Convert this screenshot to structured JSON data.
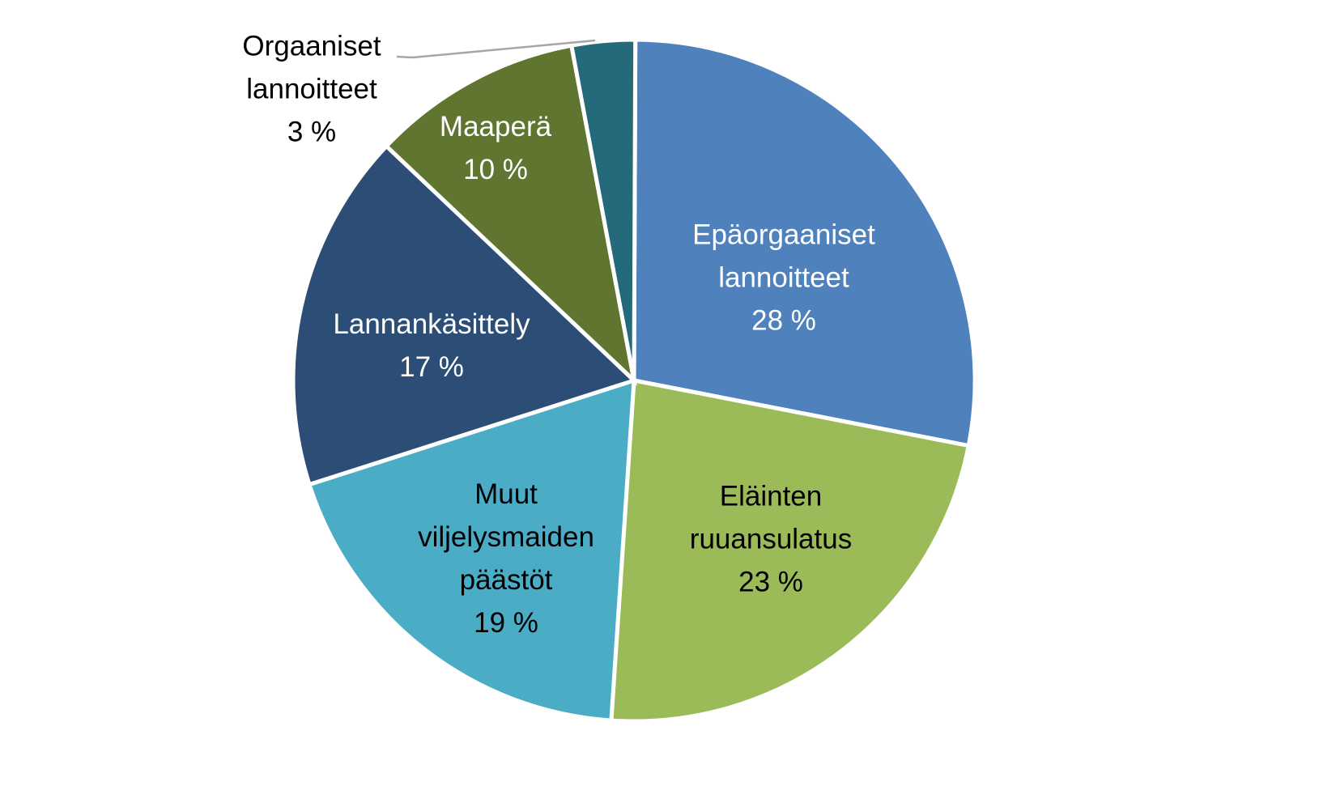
{
  "chart_data": {
    "type": "pie",
    "categories": [
      "Epäorgaaniset lannoitteet",
      "Eläinten ruuansulatus",
      "Muut viljelysmaiden päästöt",
      "Lannankäsittely",
      "Maaperä",
      "Orgaaniset lannoitteet"
    ],
    "values": [
      28,
      23,
      19,
      17,
      10,
      3
    ],
    "value_labels": [
      "28 %",
      "23 %",
      "19 %",
      "17 %",
      "10 %",
      "3 %"
    ],
    "colors": [
      "#4f81bd",
      "#9bbb59",
      "#4bacc6",
      "#2c4d75",
      "#5f7530",
      "#256a7a"
    ]
  }
}
